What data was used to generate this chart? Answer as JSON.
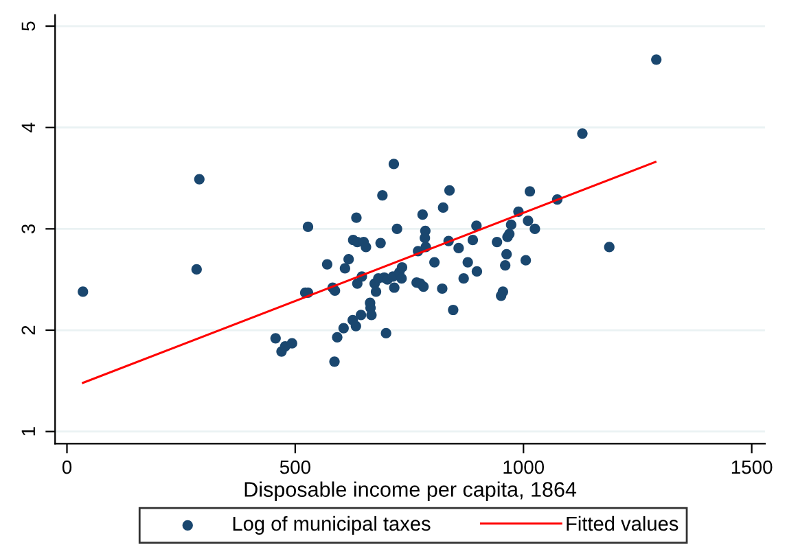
{
  "chart_data": {
    "type": "scatter",
    "xlabel": "Disposable income per capita, 1864",
    "xlim": [
      -26,
      1529
    ],
    "ylim": [
      0.88,
      5.11
    ],
    "xticks": [
      0,
      500,
      1000,
      1500
    ],
    "yticks": [
      1,
      2,
      3,
      4,
      5
    ],
    "grid": "y",
    "legend": "bottom",
    "series": [
      {
        "name": "Log of municipal taxes",
        "type": "scatter",
        "marker": "circle",
        "color": "#1a476f",
        "x": [
          35,
          284,
          290,
          457,
          470,
          478,
          493,
          522,
          528,
          528,
          570,
          582,
          587,
          586,
          592,
          606,
          609,
          617,
          626,
          627,
          633,
          634,
          636,
          636,
          644,
          646,
          650,
          655,
          664,
          665,
          667,
          674,
          677,
          682,
          687,
          691,
          695,
          699,
          702,
          714,
          717,
          716,
          723,
          728,
          734,
          733,
          769,
          766,
          774,
          779,
          781,
          785,
          784,
          786,
          805,
          822,
          824,
          836,
          838,
          846,
          858,
          869,
          878,
          889,
          897,
          898,
          942,
          951,
          955,
          960,
          963,
          965,
          969,
          973,
          989,
          1005,
          1010,
          1014,
          1025,
          1074,
          1129,
          1188,
          1291
        ],
        "values": [
          2.38,
          2.6,
          3.49,
          1.92,
          1.79,
          1.84,
          1.87,
          2.37,
          2.37,
          3.02,
          2.65,
          2.42,
          2.39,
          1.69,
          1.93,
          2.02,
          2.61,
          2.7,
          2.1,
          2.89,
          2.04,
          3.11,
          2.87,
          2.46,
          2.15,
          2.53,
          2.87,
          2.82,
          2.27,
          2.22,
          2.15,
          2.46,
          2.38,
          2.51,
          2.86,
          3.33,
          2.52,
          1.97,
          2.5,
          2.53,
          2.42,
          3.64,
          3.0,
          2.57,
          2.62,
          2.51,
          2.78,
          2.47,
          2.46,
          3.14,
          2.43,
          2.98,
          2.91,
          2.82,
          2.67,
          2.41,
          3.21,
          2.88,
          3.38,
          2.2,
          2.81,
          2.51,
          2.67,
          2.89,
          3.03,
          2.58,
          2.87,
          2.34,
          2.38,
          2.64,
          2.75,
          2.92,
          2.95,
          3.04,
          3.17,
          2.69,
          3.08,
          3.37,
          3.0,
          3.29,
          3.94,
          2.82,
          4.67
        ]
      },
      {
        "name": "Fitted values",
        "type": "line",
        "color": "#ff0000",
        "x": [
          35,
          1289
        ],
        "values": [
          1.48,
          3.66
        ]
      }
    ]
  }
}
